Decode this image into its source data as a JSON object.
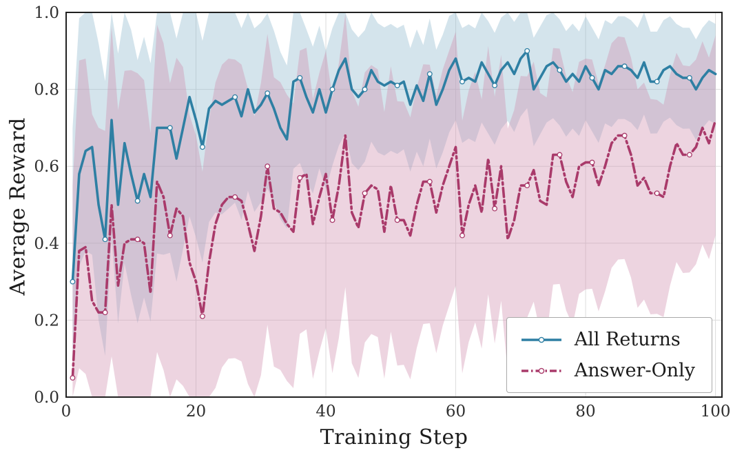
{
  "chart_data": {
    "type": "line",
    "title": "",
    "xlabel": "Training Step",
    "ylabel": "Average Reward",
    "xlim": [
      0,
      101
    ],
    "ylim": [
      0.0,
      1.0
    ],
    "xticks": [
      0,
      20,
      40,
      60,
      80,
      100
    ],
    "xtick_labels": [
      "0",
      "20",
      "40",
      "60",
      "80",
      "100"
    ],
    "yticks": [
      0.0,
      0.2,
      0.4,
      0.6,
      0.8,
      1.0
    ],
    "ytick_labels": [
      "0.0",
      "0.2",
      "0.4",
      "0.6",
      "0.8",
      "1.0"
    ],
    "grid": true,
    "legend_position": "lower right",
    "marker_every": 5,
    "colors": {
      "spine": "#202020",
      "grid": "#dcdcdc",
      "tick_text": "#2f2f2f",
      "background": "#ffffff"
    },
    "x": [
      1,
      2,
      3,
      4,
      5,
      6,
      7,
      8,
      9,
      10,
      11,
      12,
      13,
      14,
      15,
      16,
      17,
      18,
      19,
      20,
      21,
      22,
      23,
      24,
      25,
      26,
      27,
      28,
      29,
      30,
      31,
      32,
      33,
      34,
      35,
      36,
      37,
      38,
      39,
      40,
      41,
      42,
      43,
      44,
      45,
      46,
      47,
      48,
      49,
      50,
      51,
      52,
      53,
      54,
      55,
      56,
      57,
      58,
      59,
      60,
      61,
      62,
      63,
      64,
      65,
      66,
      67,
      68,
      69,
      70,
      71,
      72,
      73,
      74,
      75,
      76,
      77,
      78,
      79,
      80,
      81,
      82,
      83,
      84,
      85,
      86,
      87,
      88,
      89,
      90,
      91,
      92,
      93,
      94,
      95,
      96,
      97,
      98,
      99,
      100
    ],
    "series": [
      {
        "name": "All Returns",
        "color": "#2e7fa3",
        "band_color": "#8fb8cc",
        "band_opacity": 0.38,
        "line_style": "solid",
        "dash": "",
        "values": [
          0.3,
          0.58,
          0.64,
          0.65,
          0.5,
          0.41,
          0.72,
          0.5,
          0.66,
          0.58,
          0.51,
          0.58,
          0.52,
          0.7,
          0.7,
          0.7,
          0.62,
          0.7,
          0.78,
          0.72,
          0.65,
          0.75,
          0.77,
          0.76,
          0.77,
          0.78,
          0.73,
          0.8,
          0.74,
          0.76,
          0.79,
          0.75,
          0.7,
          0.67,
          0.82,
          0.83,
          0.78,
          0.74,
          0.8,
          0.74,
          0.8,
          0.85,
          0.88,
          0.8,
          0.78,
          0.8,
          0.85,
          0.82,
          0.81,
          0.82,
          0.81,
          0.82,
          0.76,
          0.81,
          0.77,
          0.84,
          0.76,
          0.8,
          0.85,
          0.88,
          0.82,
          0.83,
          0.82,
          0.87,
          0.84,
          0.81,
          0.85,
          0.87,
          0.84,
          0.88,
          0.9,
          0.8,
          0.83,
          0.86,
          0.87,
          0.85,
          0.82,
          0.84,
          0.82,
          0.86,
          0.83,
          0.8,
          0.85,
          0.84,
          0.86,
          0.86,
          0.85,
          0.83,
          0.87,
          0.82,
          0.82,
          0.85,
          0.86,
          0.84,
          0.83,
          0.83,
          0.8,
          0.83,
          0.85,
          0.84
        ],
        "band_x": [
          1,
          5,
          15,
          25,
          40,
          60,
          80,
          100
        ],
        "band_upper_offset": [
          0.4,
          0.42,
          0.33,
          0.24,
          0.16,
          0.14,
          0.13,
          0.13
        ],
        "band_lower_offset": [
          0.22,
          0.3,
          0.33,
          0.28,
          0.2,
          0.16,
          0.14,
          0.13
        ]
      },
      {
        "name": "Answer-Only",
        "color": "#a93a6a",
        "band_color": "#cf8fae",
        "band_opacity": 0.38,
        "line_style": "dashdot",
        "dash": "13 5 3 5",
        "values": [
          0.05,
          0.38,
          0.39,
          0.25,
          0.22,
          0.22,
          0.5,
          0.29,
          0.4,
          0.41,
          0.41,
          0.4,
          0.27,
          0.56,
          0.52,
          0.42,
          0.49,
          0.47,
          0.35,
          0.3,
          0.21,
          0.35,
          0.45,
          0.5,
          0.52,
          0.52,
          0.51,
          0.45,
          0.38,
          0.47,
          0.6,
          0.49,
          0.48,
          0.45,
          0.43,
          0.57,
          0.58,
          0.45,
          0.52,
          0.58,
          0.46,
          0.55,
          0.68,
          0.48,
          0.44,
          0.53,
          0.55,
          0.54,
          0.43,
          0.55,
          0.46,
          0.46,
          0.42,
          0.5,
          0.56,
          0.56,
          0.48,
          0.55,
          0.6,
          0.65,
          0.42,
          0.5,
          0.55,
          0.48,
          0.62,
          0.49,
          0.6,
          0.41,
          0.46,
          0.55,
          0.55,
          0.59,
          0.51,
          0.5,
          0.63,
          0.63,
          0.56,
          0.52,
          0.6,
          0.61,
          0.61,
          0.55,
          0.6,
          0.66,
          0.68,
          0.68,
          0.63,
          0.55,
          0.57,
          0.53,
          0.53,
          0.52,
          0.6,
          0.66,
          0.63,
          0.63,
          0.65,
          0.7,
          0.66,
          0.72
        ],
        "band_x": [
          1,
          5,
          15,
          25,
          40,
          60,
          80,
          100
        ],
        "band_upper_offset": [
          0.5,
          0.48,
          0.4,
          0.36,
          0.32,
          0.3,
          0.27,
          0.22
        ],
        "band_lower_offset": [
          0.28,
          0.38,
          0.45,
          0.42,
          0.4,
          0.36,
          0.33,
          0.3
        ]
      }
    ]
  }
}
